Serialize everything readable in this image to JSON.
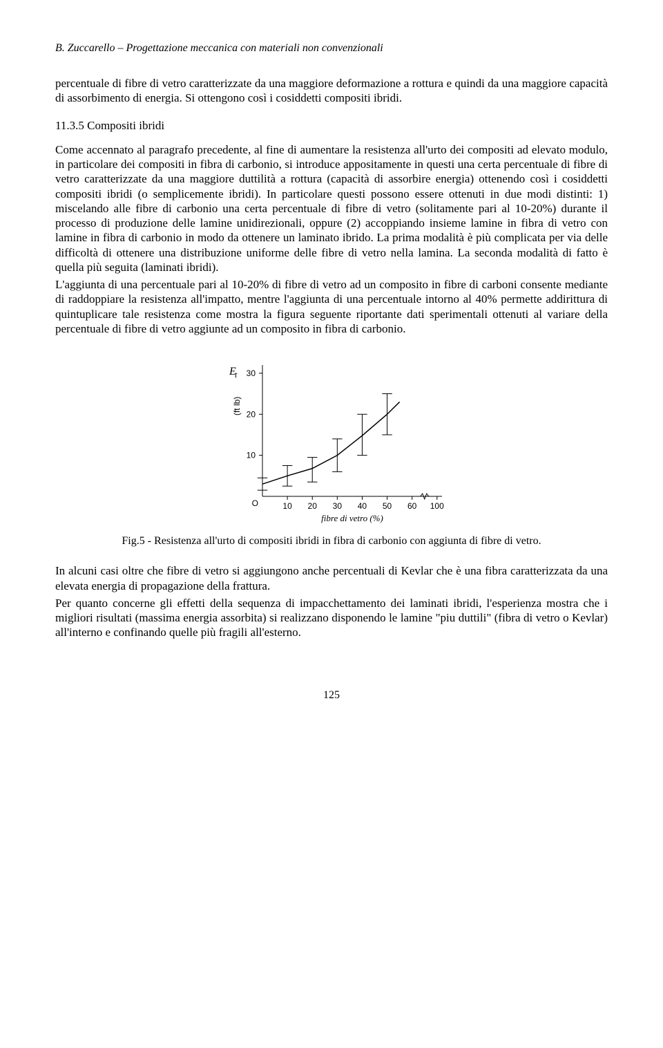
{
  "header": {
    "running_title": "B. Zuccarello – Progettazione meccanica con materiali non convenzionali"
  },
  "text": {
    "intro_para": "percentuale di fibre di vetro caratterizzate da una maggiore deformazione a rottura e quindi da una maggiore capacità di assorbimento di energia. Si ottengono così i cosiddetti compositi ibridi.",
    "section_heading": "11.3.5 Compositi ibridi",
    "main_para": "Come accennato al paragrafo precedente, al fine di aumentare la resistenza all'urto dei compositi ad elevato modulo, in particolare dei compositi in fibra di carbonio, si introduce appositamente in questi una certa percentuale di fibre di vetro caratterizzate da una maggiore duttilità a rottura (capacità di assorbire energia) ottenendo così i cosiddetti compositi ibridi (o semplicemente ibridi). In particolare questi possono essere ottenuti in due modi distinti: 1) miscelando alle fibre di carbonio  una certa percentuale di fibre di vetro (solitamente pari al 10-20%) durante il processo di produzione delle lamine unidirezionali, oppure (2) accoppiando insieme lamine in fibra di vetro con lamine in fibra di carbonio in modo da ottenere un laminato ibrido. La prima modalità è più complicata per via delle difficoltà di ottenere una distribuzione uniforme delle fibre di vetro nella lamina. La seconda modalità di fatto è quella più seguita (laminati ibridi).",
    "main_para2": "L'aggiunta di una percentuale pari al 10-20% di fibre di vetro ad un composito in fibre di carboni consente mediante di raddoppiare la resistenza all'impatto, mentre l'aggiunta di una percentuale intorno al 40% permette addirittura di quintuplicare tale resistenza come mostra la figura seguente riportante dati sperimentali ottenuti al variare della percentuale di fibre di vetro aggiunte ad un composito in fibra di carbonio.",
    "caption": "Fig.5 - Resistenza all'urto di compositi ibridi in fibra di carbonio con aggiunta di fibre di vetro.",
    "after_fig_p1": "In alcuni casi oltre che fibre di vetro si aggiungono anche percentuali di Kevlar che è una fibra caratterizzata da una elevata energia di propagazione della frattura.",
    "after_fig_p2": "Per quanto concerne gli effetti della sequenza di impacchettamento dei laminati ibridi, l'esperienza mostra che i migliori risultati (massima energia assorbita) si realizzano disponendo le lamine \"piu duttili\" (fibra di vetro o Kevlar) all'interno e confinando quelle più fragili all'esterno."
  },
  "figure": {
    "type": "line-with-errorbars",
    "y_label_symbol": "E",
    "y_label_sub": "t",
    "y_unit": "(ft lb)",
    "x_axis_caption": "fibre di vetro (%)",
    "x_ticks": [
      "10",
      "20",
      "30",
      "40",
      "50",
      "60",
      "100"
    ],
    "x_tick_positions": [
      10,
      20,
      30,
      40,
      50,
      60,
      70
    ],
    "y_ticks": [
      "10",
      "20",
      "30"
    ],
    "y_tick_positions": [
      10,
      20,
      30
    ],
    "xlim": [
      0,
      72
    ],
    "ylim": [
      0,
      32
    ],
    "data_points": [
      {
        "x": 0,
        "y": 3.0,
        "err": 1.5
      },
      {
        "x": 10,
        "y": 5.0,
        "err": 2.5
      },
      {
        "x": 20,
        "y": 6.5,
        "err": 3.0
      },
      {
        "x": 30,
        "y": 10.0,
        "err": 4.0
      },
      {
        "x": 40,
        "y": 15.0,
        "err": 5.0
      },
      {
        "x": 50,
        "y": 20.0,
        "err": 5.0
      }
    ],
    "curve": [
      {
        "x": 0,
        "y": 3.0
      },
      {
        "x": 10,
        "y": 5.0
      },
      {
        "x": 20,
        "y": 6.8
      },
      {
        "x": 30,
        "y": 10.0
      },
      {
        "x": 40,
        "y": 14.8
      },
      {
        "x": 50,
        "y": 20.0
      },
      {
        "x": 55,
        "y": 23.0
      }
    ],
    "axis_break_x": 65,
    "line_color": "#000000",
    "line_width": 1.5,
    "err_cap_halfwidth": 2.0,
    "background_color": "#ffffff"
  },
  "page_number": "125"
}
